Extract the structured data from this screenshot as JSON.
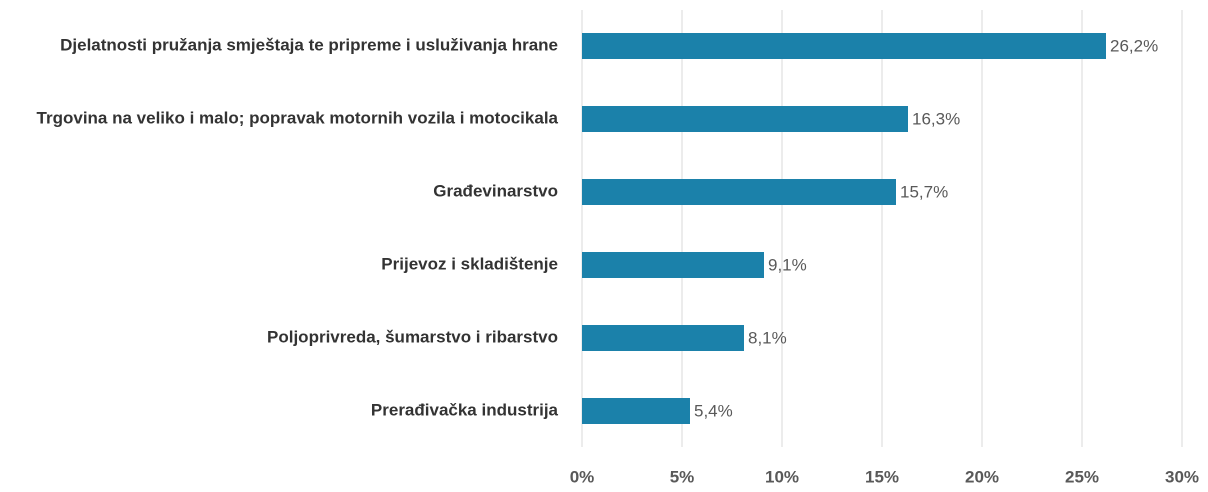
{
  "chart_data": {
    "type": "bar",
    "orientation": "horizontal",
    "categories": [
      "Djelatnosti pružanja smještaja te pripreme i usluživanja hrane",
      "Trgovina na veliko i malo; popravak motornih vozila i motocikala",
      "Građevinarstvo",
      "Prijevoz i skladištenje",
      "Poljoprivreda, šumarstvo i ribarstvo",
      "Prerađivačka industrija"
    ],
    "values": [
      26.2,
      16.3,
      15.7,
      9.1,
      8.1,
      5.4
    ],
    "value_labels": [
      "26,2%",
      "16,3%",
      "15,7%",
      "9,1%",
      "8,1%",
      "5,4%"
    ],
    "color": "#1b81aa",
    "xlim": [
      0,
      30
    ],
    "xticks": [
      {
        "value": 0,
        "label": "0%"
      },
      {
        "value": 5,
        "label": "5%"
      },
      {
        "value": 10,
        "label": "10%"
      },
      {
        "value": 15,
        "label": "15%"
      },
      {
        "value": 20,
        "label": "20%"
      },
      {
        "value": 25,
        "label": "25%"
      },
      {
        "value": 30,
        "label": "30%"
      }
    ],
    "grid": true
  }
}
